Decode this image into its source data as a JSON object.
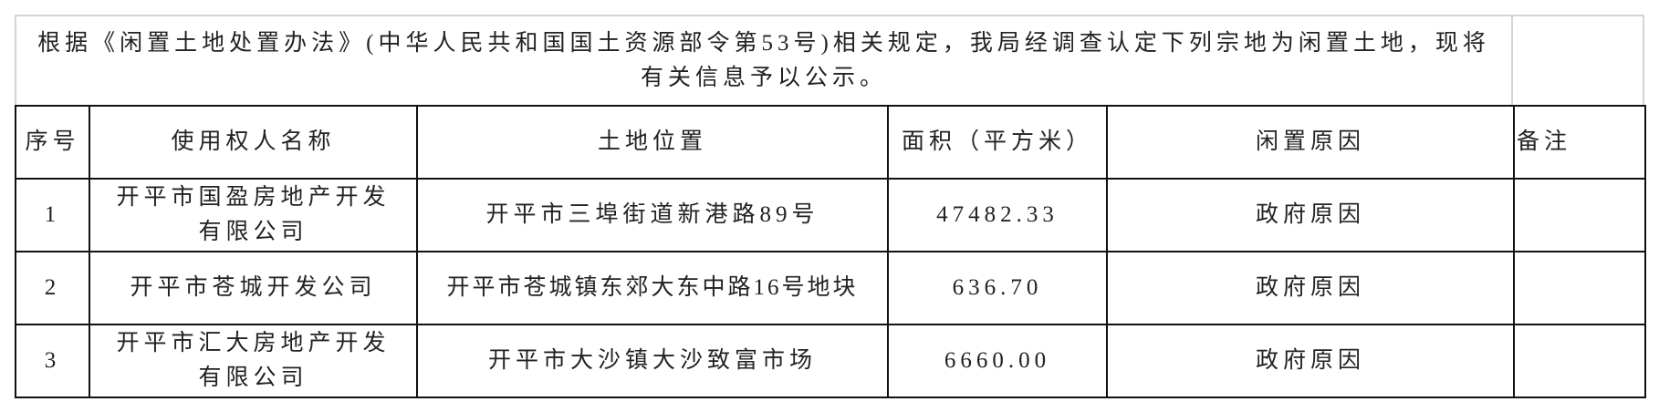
{
  "notice": "根据《闲置土地处置办法》(中华人民共和国国土资源部令第53号)相关规定，我局经调查认定下列宗地为闲置土地，现将有关信息予以公示。",
  "headers": [
    "序号",
    "使用权人名称",
    "土地位置",
    "面积（平方米）",
    "闲置原因",
    "备注"
  ],
  "rows": [
    {
      "no": "1",
      "owner": "开平市国盈房地产开发有限公司",
      "location": "开平市三埠街道新港路89号",
      "area": "47482.33",
      "reason": "政府原因",
      "note": ""
    },
    {
      "no": "2",
      "owner": "开平市苍城开发公司",
      "location": "开平市苍城镇东郊大东中路16号地块",
      "area": "636.70",
      "reason": "政府原因",
      "note": ""
    },
    {
      "no": "3",
      "owner": "开平市汇大房地产开发有限公司",
      "location": "开平市大沙镇大沙致富市场",
      "area": "6660.00",
      "reason": "政府原因",
      "note": ""
    }
  ]
}
